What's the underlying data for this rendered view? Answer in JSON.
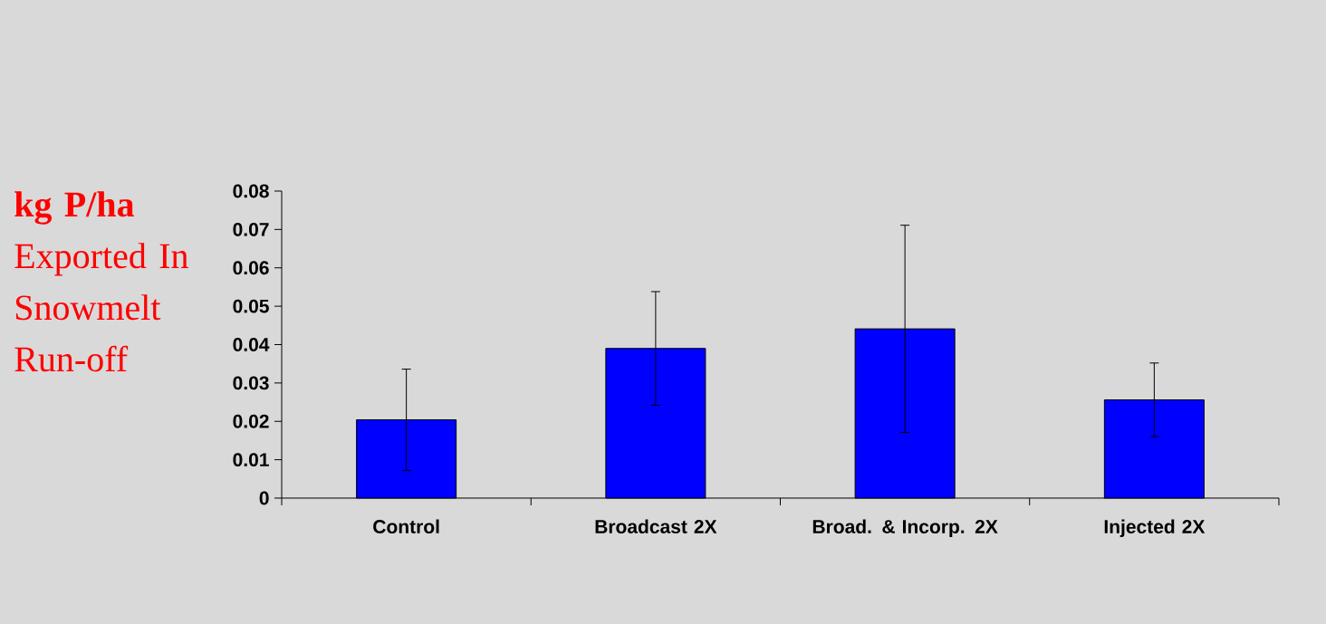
{
  "chart_data": {
    "type": "bar",
    "ylabel": "**kg P/ha** Exported In Snowmelt Run-off",
    "categories": [
      "Control",
      "Broadcast 2X",
      "Broad. & Incorp. 2X",
      "Injected 2X"
    ],
    "values": [
      0.0204,
      0.039,
      0.0441,
      0.0256
    ],
    "errors": [
      0.0132,
      0.0148,
      0.027,
      0.0096
    ],
    "color": "#0000ff",
    "ylim": [
      0,
      0.08
    ],
    "yticks": [
      0,
      0.01,
      0.02,
      0.03,
      0.04,
      0.05,
      0.06,
      0.07,
      0.08
    ]
  }
}
